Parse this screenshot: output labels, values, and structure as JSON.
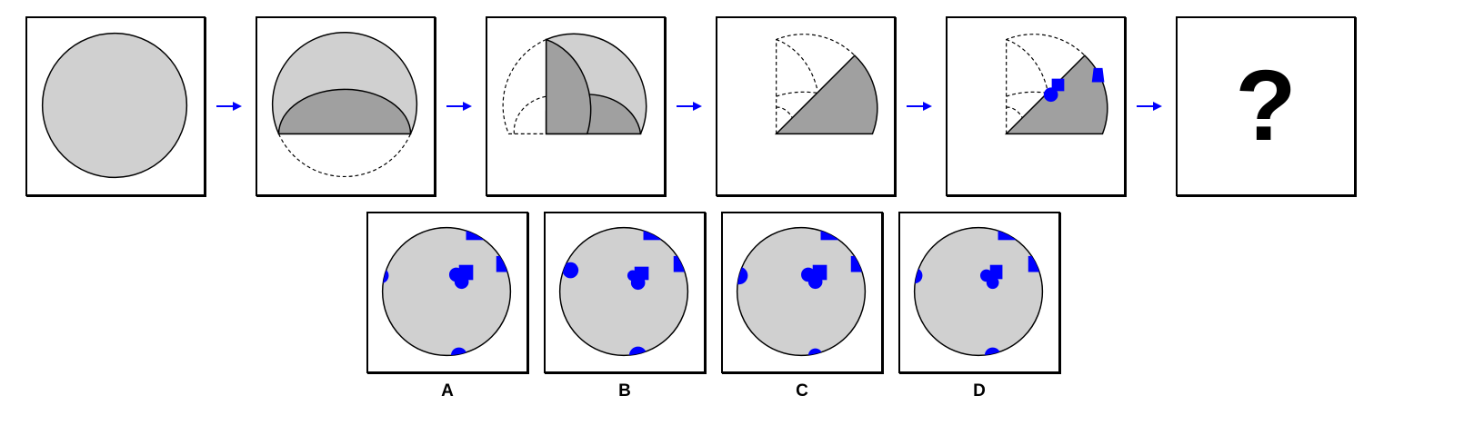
{
  "question_mark": "?",
  "options": [
    {
      "label": "A"
    },
    {
      "label": "B"
    },
    {
      "label": "C"
    },
    {
      "label": "D"
    }
  ],
  "colors": {
    "light_gray": "#d0d0d0",
    "dark_gray": "#a0a0a0",
    "blue": "#0000ff",
    "arrow": "#0000ff",
    "outline": "#000000"
  }
}
